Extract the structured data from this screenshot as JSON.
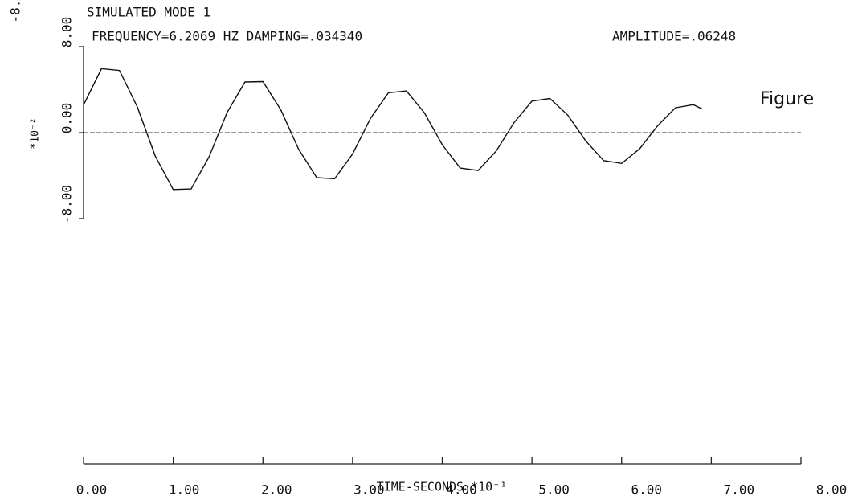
{
  "chart_data": {
    "type": "line",
    "title": "SIMULATED MODE 1",
    "subtitle": "FREQUENCY=6.2069  HZ DAMPING=.034340",
    "annotation": "AMPLITUDE=.06248",
    "figure_label": "Figure",
    "corner_text": "-8.",
    "x_label": "TIME-SECONDS *10⁻¹",
    "y_label": "*10⁻²",
    "x": [
      0,
      0.2,
      0.4,
      0.6,
      0.8,
      1.0,
      1.2,
      1.4,
      1.6,
      1.8,
      2.0,
      2.2,
      2.4,
      2.6,
      2.8,
      3.0,
      3.2,
      3.4,
      3.6,
      3.8,
      4.0,
      4.2,
      4.4,
      4.6,
      4.8,
      5.0,
      5.2,
      5.4,
      5.6,
      5.8,
      6.0,
      6.2,
      6.4,
      6.6,
      6.8,
      6.9
    ],
    "series": [
      {
        "color": "#111111",
        "values": [
          2.57,
          5.95,
          5.79,
          2.38,
          -2.19,
          -5.29,
          -5.24,
          -2.24,
          1.86,
          4.71,
          4.75,
          2.11,
          -1.57,
          -4.18,
          -4.29,
          -1.98,
          1.33,
          3.71,
          3.88,
          1.85,
          -1.12,
          -3.3,
          -3.52,
          -1.73,
          0.93,
          2.93,
          3.18,
          1.62,
          -0.77,
          -2.6,
          -2.86,
          -1.51,
          0.63,
          2.31,
          2.6,
          2.2
        ]
      }
    ],
    "xlim": [
      0,
      8
    ],
    "ylim": [
      -8,
      8
    ],
    "xticks": [
      {
        "value": 0,
        "label": "0.00"
      },
      {
        "value": 1,
        "label": "1.00"
      },
      {
        "value": 2,
        "label": "2.00"
      },
      {
        "value": 3,
        "label": "3.00"
      },
      {
        "value": 4,
        "label": "4.00"
      },
      {
        "value": 5,
        "label": "5.00"
      },
      {
        "value": 6,
        "label": "6.00"
      },
      {
        "value": 7,
        "label": "7.00"
      },
      {
        "value": 8,
        "label": "8.00"
      }
    ],
    "yticks": [
      {
        "value": -8,
        "label": "-8.00"
      },
      {
        "value": 0,
        "label": "0.00"
      },
      {
        "value": 8,
        "label": "8.00"
      }
    ]
  }
}
